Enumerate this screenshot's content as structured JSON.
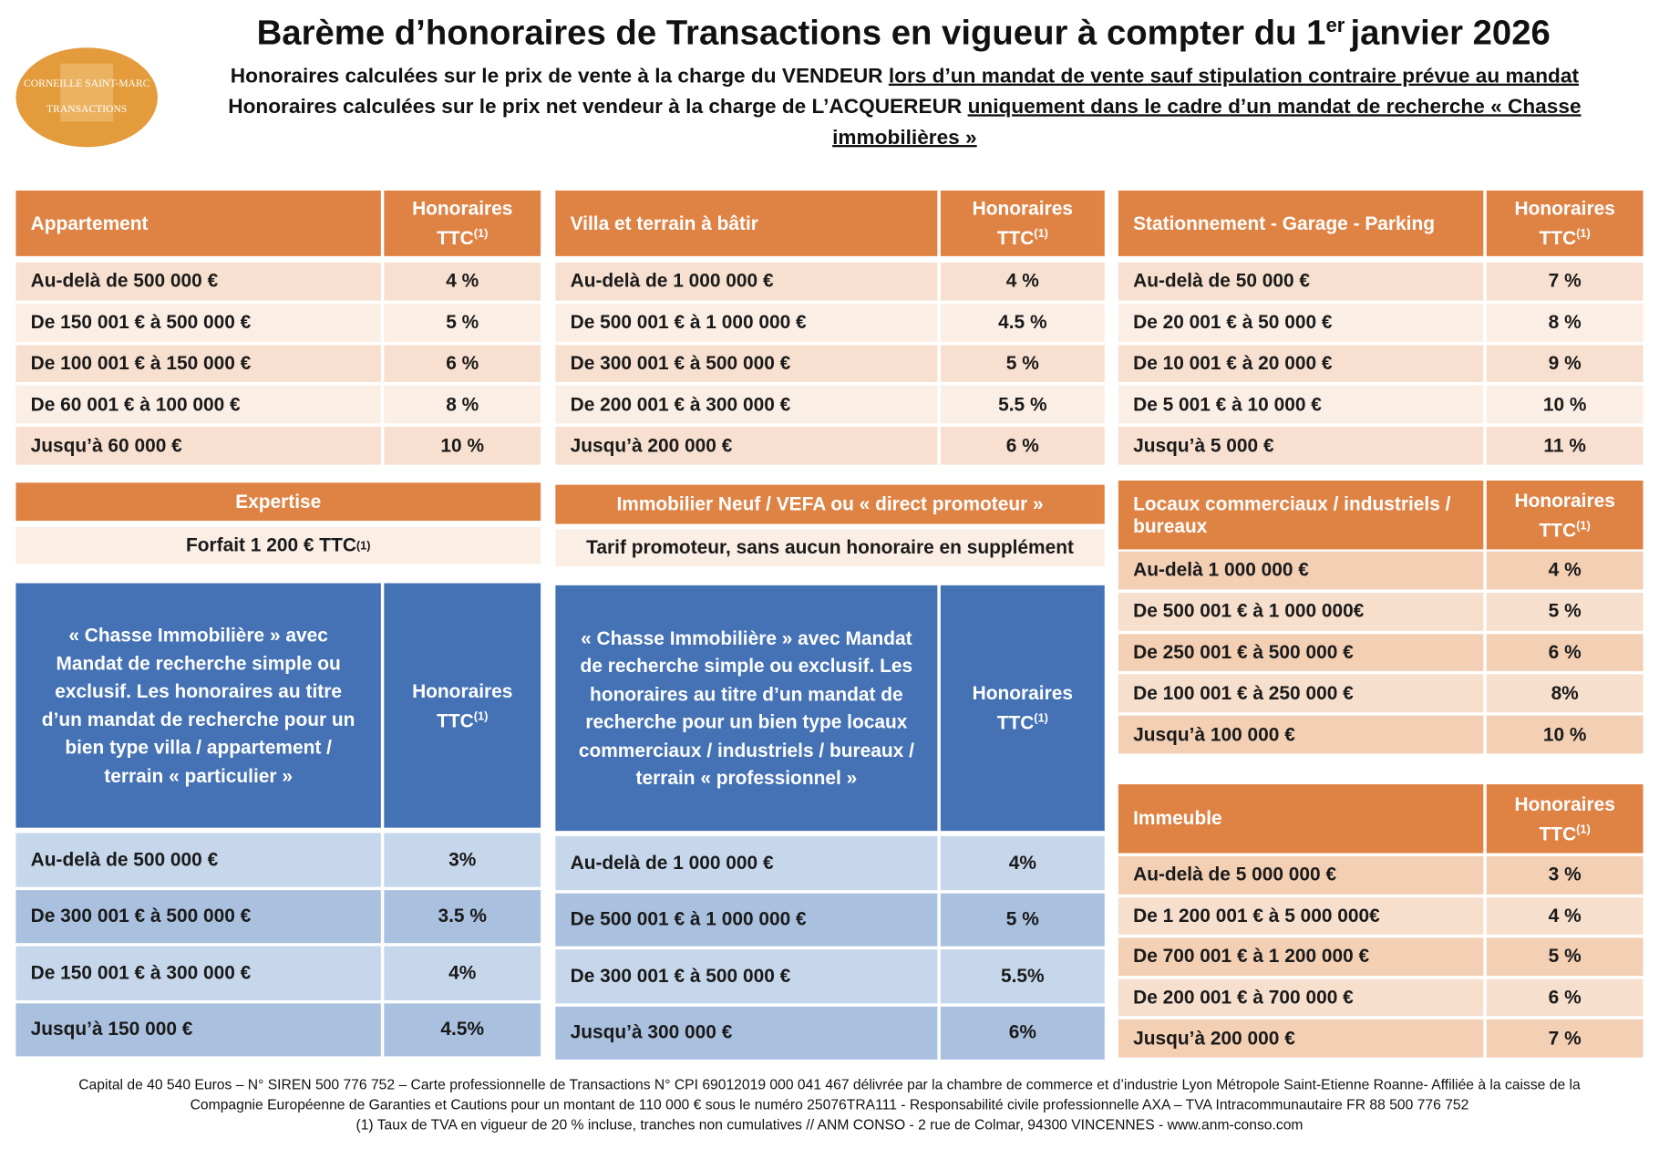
{
  "header": {
    "logo": [
      "CORNEILLE SAINT-MARC",
      "TRANSACTIONS"
    ],
    "title": "Barème d’honoraires de Transactions en vigueur à compter du 1",
    "title_sup": "er",
    "title_end": "janvier 2026",
    "line1": "Honoraires calculées sur le prix de vente à la charge du VENDEUR",
    "line1_underlined": "lors d’un mandat de vente sauf stipulation contraire prévue au mandat",
    "line2": "Honoraires calculées sur le prix net vendeur à la charge de L’ACQUEREUR",
    "line2_underlined": "uniquement dans le cadre d’un mandat de recherche « Chasse immobilières »"
  },
  "tables": [
    {
      "title": "Appartement",
      "head": "Honoraires TTC",
      "head_sup": "(1)",
      "rows": [
        [
          "Au-delà de 500 000 €",
          "4 %"
        ],
        [
          "De 150 001 € à 500 000 €",
          "5 %"
        ],
        [
          "De 100 001 € à 150 000 €",
          "6 %"
        ],
        [
          "De 60 001 € à 100 000 €",
          "8 %"
        ],
        [
          "Jusqu’à 60 000 €",
          "10 %"
        ]
      ]
    },
    {
      "title": "Villa et terrain à bâtir",
      "head": "Honoraires TTC",
      "head_sup": "(1)",
      "rows": [
        [
          "Au-delà de 1 000 000 €",
          "4 %"
        ],
        [
          "De 500 001 €  à 1 000 000 €",
          "4.5 %"
        ],
        [
          "De 300 001 € à 500 000 €",
          "5 %"
        ],
        [
          "De 200 001 € à 300 000 €",
          "5.5 %"
        ],
        [
          "Jusqu’à 200 000 €",
          "6 %"
        ]
      ]
    },
    {
      "title": "Stationnement - Garage - Parking",
      "head": "Honoraires TTC",
      "head_sup": "(1)",
      "rows": [
        [
          "Au-delà de 50 000 €",
          "7 %"
        ],
        [
          "De 20 001 €  à 50 000 €",
          "8 %"
        ],
        [
          "De 10 001 € à 20 000 €",
          "9 %"
        ],
        [
          "De 5 001 € à 10 000 €",
          "10 %"
        ],
        [
          "Jusqu’à 5 000 €",
          "11 %"
        ]
      ]
    },
    {
      "title": "Expertise",
      "text": "Forfait 1 200 € TTC",
      "text_sup": "(1)"
    },
    {
      "title": "Immobilier Neuf / VEFA ou « direct promoteur »",
      "text": "Tarif promoteur, sans aucun honoraire en supplément"
    },
    {
      "title": "Locaux commerciaux / industriels / bureaux",
      "head": "Honoraires TTC",
      "head_sup": "(1)",
      "rows": [
        [
          "Au-delà 1 000 000 €",
          "4 %"
        ],
        [
          "De 500 001 € à 1 000 000€",
          "5 %"
        ],
        [
          "De 250 001 € à 500 000 €",
          "6 %"
        ],
        [
          "De 100 001 € à 250 000 €",
          "8%"
        ],
        [
          "Jusqu’à 100 000 €",
          "10 %"
        ]
      ]
    },
    {
      "title": "« Chasse Immobilière » avec Mandat de recherche simple ou exclusif. Les honoraires au titre d’un mandat de recherche pour un bien type villa / appartement / terrain « particulier »",
      "head": "Honoraires TTC",
      "head_sup": "(1)",
      "rows": [
        [
          "Au-delà de 500 000 €",
          "3%"
        ],
        [
          "De 300 001 € à 500 000 €",
          "3.5 %"
        ],
        [
          "De 150 001 € à 300 000 €",
          "4%"
        ],
        [
          "Jusqu’à 150 000 €",
          "4.5%"
        ]
      ]
    },
    {
      "title": "« Chasse Immobilière » avec Mandat de recherche simple ou exclusif. Les honoraires au titre d’un mandat de recherche pour un bien type locaux commerciaux / industriels / bureaux / terrain « professionnel »",
      "head": "Honoraires TTC",
      "head_sup": "(1)",
      "rows": [
        [
          "Au-delà de 1 000 000 €",
          "4%"
        ],
        [
          "De 500 001 € à 1 000 000 €",
          "5 %"
        ],
        [
          "De 300 001 € à 500 000 €",
          "5.5%"
        ],
        [
          "Jusqu’à 300 000 €",
          "6%"
        ]
      ]
    },
    {
      "title": "Immeuble",
      "head": "Honoraires TTC",
      "head_sup": "(1)",
      "rows": [
        [
          "Au-delà de 5 000 000 €",
          "3 %"
        ],
        [
          "De 1 200 001 € à 5 000 000€",
          "4 %"
        ],
        [
          "De 700 001 € à 1 200 000 €",
          "5 %"
        ],
        [
          "De 200 001 € à 700 000 €",
          "6 %"
        ],
        [
          "Jusqu’à 200 000 €",
          "7 %"
        ]
      ]
    }
  ],
  "footer": [
    "Capital de 40 540 Euros – N° SIREN 500 776 752 – Carte professionnelle de Transactions N° CPI 69012019 000 041 467 délivrée par la chambre de commerce et d’industrie Lyon Métropole Saint-Etienne Roanne- Affiliée à la caisse de la",
    "Compagnie Européenne de Garanties et Cautions pour un montant de 110 000 € sous le numéro 25076TRA111 - Responsabilité civile professionnelle AXA – TVA Intracommunautaire FR 88 500 776 752",
    "(1) Taux de TVA en vigueur de 20 % incluse, tranches non cumulatives // ANM CONSO  - 2 rue de Colmar, 94300 VINCENNES - www.anm-conso.com"
  ]
}
